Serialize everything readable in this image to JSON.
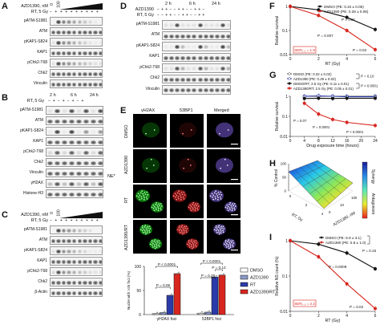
{
  "panels": {
    "A": {
      "letter": "A",
      "treatment_rows": [
        "AZD1390, nM",
        "RT, 5 Gy"
      ],
      "header_numbers": [
        "0",
        "100"
      ],
      "blot_labels": [
        "pATM-S1981",
        "ATM",
        "pKAP1-S824",
        "KAP1",
        "pChk2-T68",
        "Chk2",
        "Vinculin"
      ]
    },
    "B": {
      "letter": "B",
      "timepoints": [
        "2 h",
        "6 h",
        "24 h"
      ],
      "treatment_rows": [
        "RT, 5 Gy"
      ],
      "blot_labels": [
        "pATM-S1981",
        "ATM",
        "pKAP1-S824",
        "KAP1",
        "pChk2-T68",
        "Chk2",
        "Vinculin",
        "γH2AX",
        "Histone-H3"
      ],
      "ne_label": "NE*"
    },
    "C": {
      "letter": "C",
      "treatment_rows": [
        "AZD1390, nM",
        "RT, 5 Gy"
      ],
      "header_numbers": [
        "0",
        "100"
      ],
      "blot_labels": [
        "pATM-S1981",
        "ATM",
        "pKAP1-S824",
        "KAP1",
        "pChk2-T68",
        "Chk2",
        "β-Actin"
      ]
    },
    "D": {
      "letter": "D",
      "timepoints": [
        "2 h",
        "6 h",
        "24 h"
      ],
      "treatment_rows": [
        "AZD1390",
        "RT, 5 Gy"
      ],
      "blot_labels": [
        "pATM-S1981",
        "ATM",
        "pKAP1-S824",
        "KAP1",
        "pChk2-T68",
        "Chk2",
        "Vinculin"
      ]
    },
    "E": {
      "letter": "E",
      "columns": [
        "γH2AX",
        "53BP1",
        "Merged"
      ],
      "rows": [
        "DMSO",
        "AZD1390",
        "RT",
        "AZD1390/RT"
      ],
      "ylabel": "Nuclei with >25 foci (%)",
      "yticks": [
        "0",
        "50",
        "100"
      ],
      "groups": [
        "γH2AX foci",
        "53BP1 foci"
      ],
      "pvalues": [
        "P < 0.0001",
        "P = 0.13",
        "P = 0.06",
        "P = 0.29",
        "P < 0.0001"
      ],
      "legend": [
        "DMSO",
        "AZD1390",
        "RT",
        "AZD1390/RT"
      ],
      "colors": [
        "#ffffff",
        "#8a9ac8",
        "#2a3aa8",
        "#d8261e"
      ]
    },
    "F": {
      "letter": "F",
      "legend": [
        "DMSO (PE: 0.34 ± 0.05)",
        "AZD1390 (PE: 0.28 ± 0.06)"
      ],
      "pvalues": [
        "P = 0.01",
        "P = 0.007",
        "P = 0.02"
      ],
      "ser_label": "SER₀.₁ = 1.9",
      "xlabel": "RT (Gy)",
      "ylabel": "Relative survival",
      "xticks": [
        "0",
        "2",
        "4",
        "6"
      ],
      "yticks": [
        "1",
        "0.1",
        "0.01"
      ]
    },
    "G": {
      "letter": "G",
      "legend": [
        "DMSO (PE: 0.32 ± 0.02)",
        "AZD1390 (PE: 0.29 ± 0.02)",
        "DMSO/RT, 2.5 Gy (PE: 0.11 ± 0.01)",
        "AZD1390/RT, 2.5 Gy (PE: 0.05 ± 0.01)"
      ],
      "bracket_labels": [
        "P = 0.10",
        "P < 0.0001"
      ],
      "pvalues": [
        "P = 0.07",
        "P = 0.0001",
        "P < 0.0001"
      ],
      "xlabel": "Drug exposure time (hours)",
      "ylabel": "Relative survival",
      "xticks": [
        "0",
        "4",
        "8",
        "12",
        "16",
        "20",
        "24"
      ],
      "yticks": [
        "1",
        "0.1",
        "0.01"
      ]
    },
    "H": {
      "letter": "H",
      "zlabel": "% Control",
      "xlabel": "RT, Gy",
      "ylabel": "AZD1390, nM",
      "zticks": [
        "0",
        "50",
        "100"
      ],
      "xticks": [
        "0",
        "2",
        "4"
      ],
      "yticks": [
        "0",
        "10",
        "100"
      ],
      "colorbar_top": "Synergy",
      "colorbar_bottom": "Antagonism"
    },
    "I": {
      "letter": "I",
      "legend": [
        "DMSO (PE: 6.9 ± 3.1)",
        "AZD1390 (PE: 5.8 ± 1.0)"
      ],
      "bracket_label": "P = 0.15",
      "pvalues": [
        "P = 0.0009",
        "P = 0.02"
      ],
      "ser_label": "SER₀.₁ = 2.2",
      "xlabel": "RT (Gy)",
      "ylabel": "Relative NS count (%)",
      "xticks": [
        "0",
        "2",
        "4",
        "6"
      ],
      "yticks": [
        "1",
        "0.1",
        "0.01"
      ]
    }
  },
  "chart_data": [
    {
      "type": "bar",
      "panel": "E",
      "categories": [
        "γH2AX foci",
        "53BP1 foci"
      ],
      "series": [
        {
          "name": "DMSO",
          "values": [
            2,
            3
          ]
        },
        {
          "name": "AZD1390",
          "values": [
            4,
            5
          ]
        },
        {
          "name": "RT",
          "values": [
            40,
            78
          ]
        },
        {
          "name": "AZD1390/RT",
          "values": [
            85,
            82
          ]
        }
      ],
      "ylim": [
        0,
        100
      ],
      "ylabel": "Nuclei with >25 foci (%)"
    },
    {
      "type": "line",
      "panel": "F",
      "yscale": "log",
      "x": [
        0,
        2,
        4,
        6
      ],
      "series": [
        {
          "name": "DMSO",
          "values": [
            1,
            0.72,
            0.35,
            0.11
          ]
        },
        {
          "name": "AZD1390",
          "values": [
            1,
            0.42,
            0.1,
            0.016
          ]
        }
      ],
      "xlabel": "RT (Gy)",
      "ylabel": "Relative survival",
      "ylim": [
        0.01,
        1
      ]
    },
    {
      "type": "line",
      "panel": "G",
      "yscale": "log",
      "x": [
        4,
        8,
        12,
        16,
        24
      ],
      "series": [
        {
          "name": "DMSO",
          "values": [
            1,
            1,
            1,
            1,
            1
          ]
        },
        {
          "name": "AZD1390",
          "values": [
            1,
            1.05,
            1,
            0.95,
            0.95
          ]
        },
        {
          "name": "DMSO/RT, 2.5 Gy",
          "values": [
            0.78,
            0.8,
            0.78,
            0.8,
            0.8
          ]
        },
        {
          "name": "AZD1390/RT, 2.5 Gy",
          "values": [
            0.45,
            0.13,
            0.07,
            0.05,
            0.035
          ]
        }
      ],
      "xlabel": "Drug exposure time (hours)",
      "ylabel": "Relative survival",
      "ylim": [
        0.01,
        1
      ]
    },
    {
      "type": "line",
      "panel": "I",
      "yscale": "log",
      "x": [
        0,
        2,
        4,
        6
      ],
      "series": [
        {
          "name": "DMSO",
          "values": [
            1,
            0.8,
            0.45,
            0.16
          ]
        },
        {
          "name": "AZD1390",
          "values": [
            1,
            0.35,
            0.06,
            0.012
          ]
        }
      ],
      "xlabel": "RT (Gy)",
      "ylabel": "Relative NS count (%)",
      "ylim": [
        0.01,
        1
      ]
    }
  ]
}
